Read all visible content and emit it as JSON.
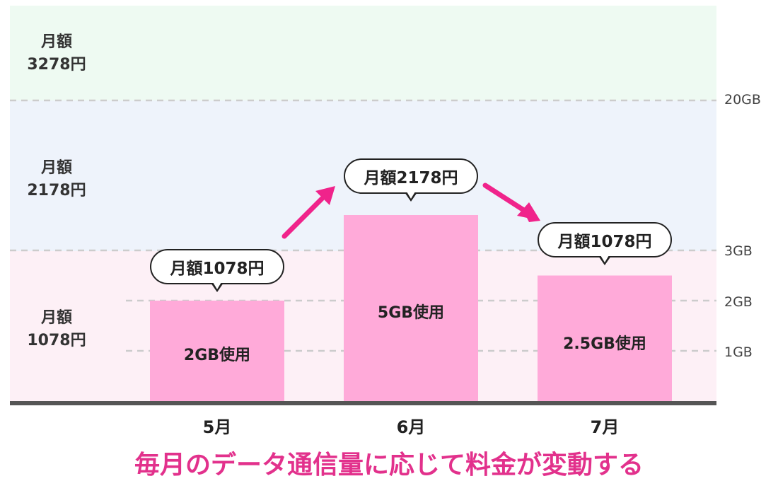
{
  "chart_data": {
    "type": "bar",
    "categories": [
      "5月",
      "6月",
      "7月"
    ],
    "values": [
      2,
      5,
      2.5
    ],
    "bar_labels": [
      "2GB使用",
      "5GB使用",
      "2.5GB使用"
    ],
    "bubbles": [
      "月額1078円",
      "月額2178円",
      "月額1078円"
    ],
    "y_ticks": [
      {
        "value": 1,
        "label": "1GB"
      },
      {
        "value": 2,
        "label": "2GB"
      },
      {
        "value": 3,
        "label": "3GB"
      },
      {
        "value": 20,
        "label": "20GB"
      }
    ],
    "tiers": [
      {
        "line1": "月額",
        "line2": "1078円",
        "range": [
          0,
          3
        ],
        "color": "#fdf0f6"
      },
      {
        "line1": "月額",
        "line2": "2178円",
        "range": [
          3,
          20
        ],
        "color": "#eef3fb"
      },
      {
        "line1": "月額",
        "line2": "3278円",
        "range": [
          20,
          null
        ],
        "color": "#eefaf2"
      }
    ],
    "caption": "毎月のデータ通信量に応じて料金が変動する",
    "colors": {
      "bar": "#ffaad9",
      "arrow": "#f0238b",
      "caption": "#e2318c",
      "baseline": "#555555",
      "gridline": "#cccccc"
    }
  }
}
